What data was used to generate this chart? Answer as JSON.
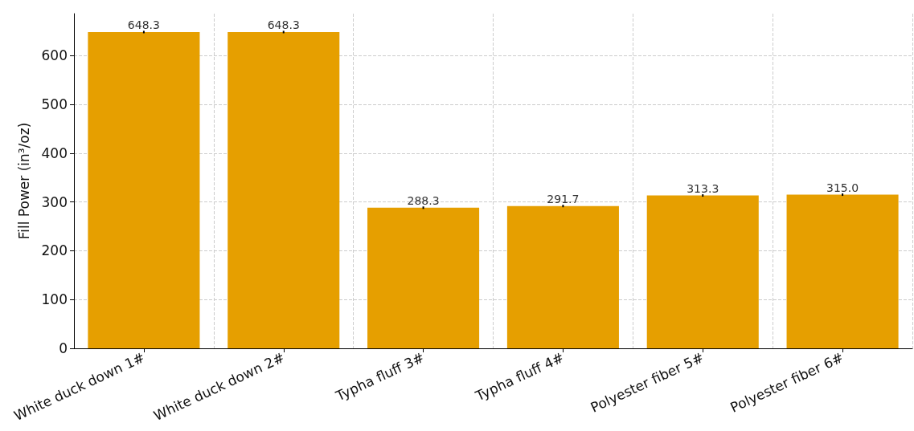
{
  "chart_data": {
    "type": "bar",
    "ylabel": "Fill Power (in³/oz)",
    "categories": [
      "White duck down 1#",
      "White duck down 2#",
      "Typha fluff 3#",
      "Typha fluff 4#",
      "Polyester fiber 5#",
      "Polyester fiber 6#"
    ],
    "values": [
      648.3,
      648.3,
      288.3,
      291.7,
      313.3,
      315.0
    ],
    "errors": [
      2.5,
      2.5,
      2.5,
      2.5,
      2.5,
      2.5
    ],
    "value_labels": [
      "648.3",
      "648.3",
      "288.3",
      "291.7",
      "313.3",
      "315.0"
    ],
    "color": "#e69f00",
    "ylim": [
      0,
      686
    ],
    "yticks": [
      0,
      100,
      200,
      300,
      400,
      500,
      600
    ],
    "grid": true
  }
}
